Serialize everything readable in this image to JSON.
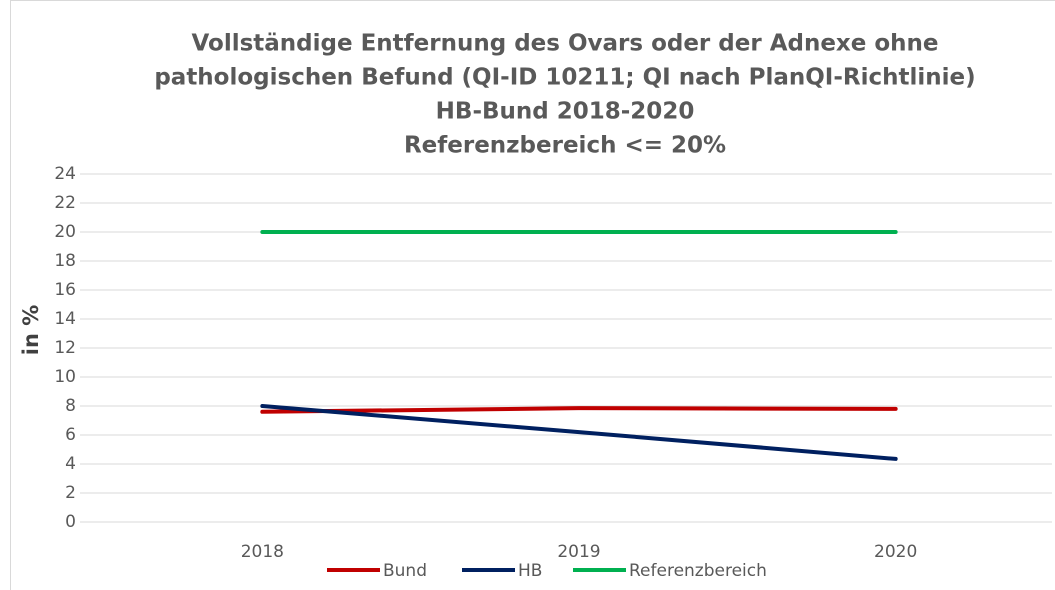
{
  "chart_data": {
    "type": "line",
    "title": [
      "Vollständige Entfernung des Ovars oder der Adnexe ohne",
      "pathologischen Befund (QI-ID 10211; QI nach PlanQI-Richtlinie)",
      "HB-Bund 2018-2020",
      "Referenzbereich <= 20%"
    ],
    "y_label": "in %",
    "categories": [
      "2018",
      "2019",
      "2020"
    ],
    "series": [
      {
        "name": "Bund",
        "color": "#c00000",
        "values": [
          7.6,
          7.85,
          7.8
        ]
      },
      {
        "name": "HB",
        "color": "#002060",
        "values": [
          8.0,
          6.2,
          4.35
        ]
      },
      {
        "name": "Referenzbereich",
        "color": "#00b050",
        "values": [
          20,
          20,
          20
        ]
      }
    ],
    "ylim": [
      0,
      24
    ],
    "yticks": [
      0,
      2,
      4,
      6,
      8,
      10,
      12,
      14,
      16,
      18,
      20,
      22,
      24
    ],
    "grid": true,
    "legend": "bottom"
  }
}
